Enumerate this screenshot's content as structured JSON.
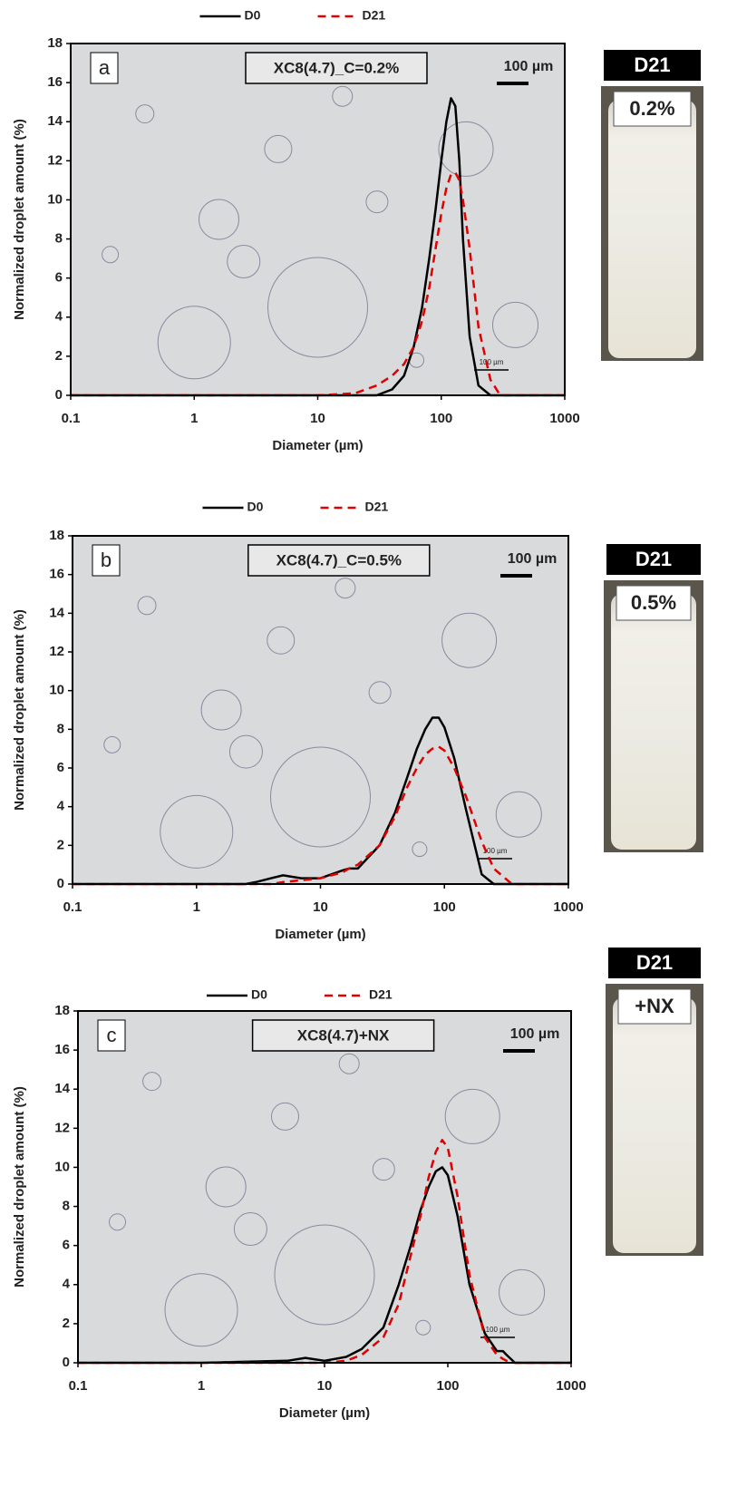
{
  "chart_data": [
    {
      "type": "line",
      "log_x": true,
      "panel_label": "a",
      "annotation": "XC8(4.7)_C=0.2%",
      "scale_bar": "100 µm",
      "scale_bar_small": "100 µm",
      "vial_title": "D21",
      "vial_label": "0.2%",
      "xlabel": "Diameter (µm)",
      "ylabel": "Normalized droplet  amount (%)",
      "x": [
        0.1,
        1,
        10,
        20,
        30,
        40,
        50,
        60,
        70,
        80,
        90,
        100,
        110,
        120,
        130,
        140,
        150,
        170,
        200,
        250,
        300,
        1000
      ],
      "series": [
        {
          "name": "D0",
          "color": "#000000",
          "dash": false,
          "values": [
            0,
            0,
            0,
            0,
            0,
            0.3,
            1,
            2.5,
            4.5,
            7,
            9.5,
            12,
            14,
            15.2,
            14.8,
            12,
            8,
            3,
            0.5,
            0,
            0,
            0
          ]
        },
        {
          "name": "D21",
          "color": "#e00000",
          "dash": true,
          "values": [
            0,
            0,
            0,
            0.1,
            0.5,
            1,
            1.6,
            2.5,
            3.8,
            5.5,
            7.5,
            9.3,
            10.6,
            11.3,
            11.4,
            11,
            10,
            7.5,
            3.5,
            0.8,
            0,
            0
          ]
        }
      ],
      "xlim": [
        0.1,
        1000
      ],
      "xticks": [
        0.1,
        1,
        10,
        100,
        1000
      ],
      "ylim": [
        0,
        18
      ],
      "yticks": [
        0,
        2,
        4,
        6,
        8,
        10,
        12,
        14,
        16,
        18
      ]
    },
    {
      "type": "line",
      "log_x": true,
      "panel_label": "b",
      "annotation": "XC8(4.7)_C=0.5%",
      "scale_bar": "100 µm",
      "scale_bar_small": "100 µm",
      "vial_title": "D21",
      "vial_label": "0.5%",
      "xlabel": "Diameter (µm)",
      "ylabel": "Normalized droplet amount (%)",
      "x": [
        0.1,
        1,
        2.5,
        3,
        4,
        5,
        7,
        10,
        15,
        17,
        20,
        30,
        40,
        50,
        60,
        70,
        80,
        90,
        100,
        120,
        150,
        200,
        250,
        350,
        1000
      ],
      "series": [
        {
          "name": "D0",
          "color": "#000000",
          "dash": false,
          "values": [
            0,
            0,
            0,
            0.1,
            0.3,
            0.45,
            0.3,
            0.3,
            0.7,
            0.8,
            0.8,
            2,
            3.7,
            5.5,
            7,
            8,
            8.6,
            8.6,
            8.1,
            6.5,
            3.8,
            0.5,
            0,
            0,
            0
          ]
        },
        {
          "name": "D21",
          "color": "#e00000",
          "dash": true,
          "values": [
            0,
            0,
            0,
            0,
            0,
            0.1,
            0.2,
            0.3,
            0.6,
            0.8,
            1,
            2,
            3.5,
            5,
            6,
            6.7,
            7,
            7.1,
            6.9,
            6,
            4.5,
            2.2,
            0.8,
            0,
            0
          ]
        }
      ],
      "xlim": [
        0.1,
        1000
      ],
      "xticks": [
        0.1,
        1,
        10,
        100,
        1000
      ],
      "ylim": [
        0,
        18
      ],
      "yticks": [
        0,
        2,
        4,
        6,
        8,
        10,
        12,
        14,
        16,
        18
      ]
    },
    {
      "type": "line",
      "log_x": true,
      "panel_label": "c",
      "annotation": "XC8(4.7)+NX",
      "scale_bar": "100 µm",
      "scale_bar_small": "100 µm",
      "vial_title": "D21",
      "vial_label": "+NX",
      "xlabel": "Diameter (µm)",
      "ylabel": "Normalized droplet amount (%)",
      "x": [
        0.1,
        1,
        5,
        7,
        10,
        15,
        20,
        30,
        40,
        50,
        60,
        70,
        80,
        90,
        100,
        120,
        150,
        200,
        250,
        280,
        300,
        350,
        1000
      ],
      "series": [
        {
          "name": "D0",
          "color": "#000000",
          "dash": false,
          "values": [
            0,
            0,
            0.1,
            0.25,
            0.1,
            0.3,
            0.7,
            1.8,
            4,
            6,
            7.8,
            9,
            9.8,
            10,
            9.6,
            7.5,
            4,
            1.5,
            0.6,
            0.6,
            0.4,
            0,
            0
          ]
        },
        {
          "name": "D21",
          "color": "#e00000",
          "dash": true,
          "values": [
            0,
            0,
            0,
            0,
            0,
            0.1,
            0.4,
            1.3,
            3,
            5.5,
            7.5,
            9.5,
            10.8,
            11.4,
            11,
            8.5,
            4.5,
            1.3,
            0.4,
            0.2,
            0.1,
            0,
            0
          ]
        }
      ],
      "xlim": [
        0.1,
        1000
      ],
      "xticks": [
        0.1,
        1,
        10,
        100,
        1000
      ],
      "ylim": [
        0,
        18
      ],
      "yticks": [
        0,
        2,
        4,
        6,
        8,
        10,
        12,
        14,
        16,
        18
      ]
    }
  ]
}
